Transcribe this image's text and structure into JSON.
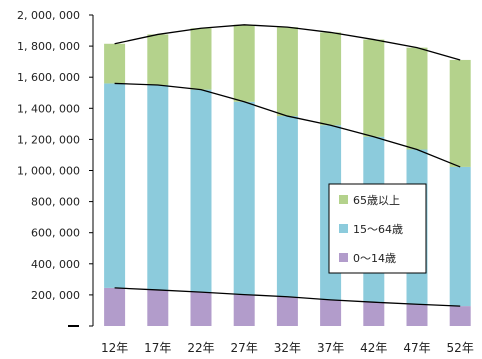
{
  "chart_data": {
    "type": "bar",
    "stacked": true,
    "categories": [
      "12年",
      "17年",
      "22年",
      "27年",
      "32年",
      "37年",
      "42年",
      "47年",
      "52年"
    ],
    "series": [
      {
        "name": "0～14歳",
        "values": [
          245000,
          232000,
          218000,
          202000,
          188000,
          168000,
          153000,
          140000,
          128000
        ]
      },
      {
        "name": "15～64歳",
        "values": [
          1315000,
          1318000,
          1302000,
          1240000,
          1162000,
          1123000,
          1064000,
          995000,
          895000
        ]
      },
      {
        "name": "65歳以上",
        "values": [
          255000,
          325000,
          395000,
          495000,
          572000,
          597000,
          625000,
          655000,
          688000
        ]
      }
    ],
    "ylim": [
      0,
      2000000
    ],
    "yticks": [
      "2, 000, 000",
      "1, 800, 000",
      "1, 600, 000",
      "1, 400, 000",
      "1, 200, 000",
      "1, 000, 000",
      "800, 000",
      "600, 000",
      "400, 000",
      "200, 000",
      ""
    ],
    "grid": false,
    "legend_position": "right",
    "colors": {
      "0～14歳": "#b29ccb",
      "15～64歳": "#8ccbdc",
      "65歳以上": "#b4d28c",
      "trend_lines": "#000000",
      "axis": "#000000"
    }
  }
}
